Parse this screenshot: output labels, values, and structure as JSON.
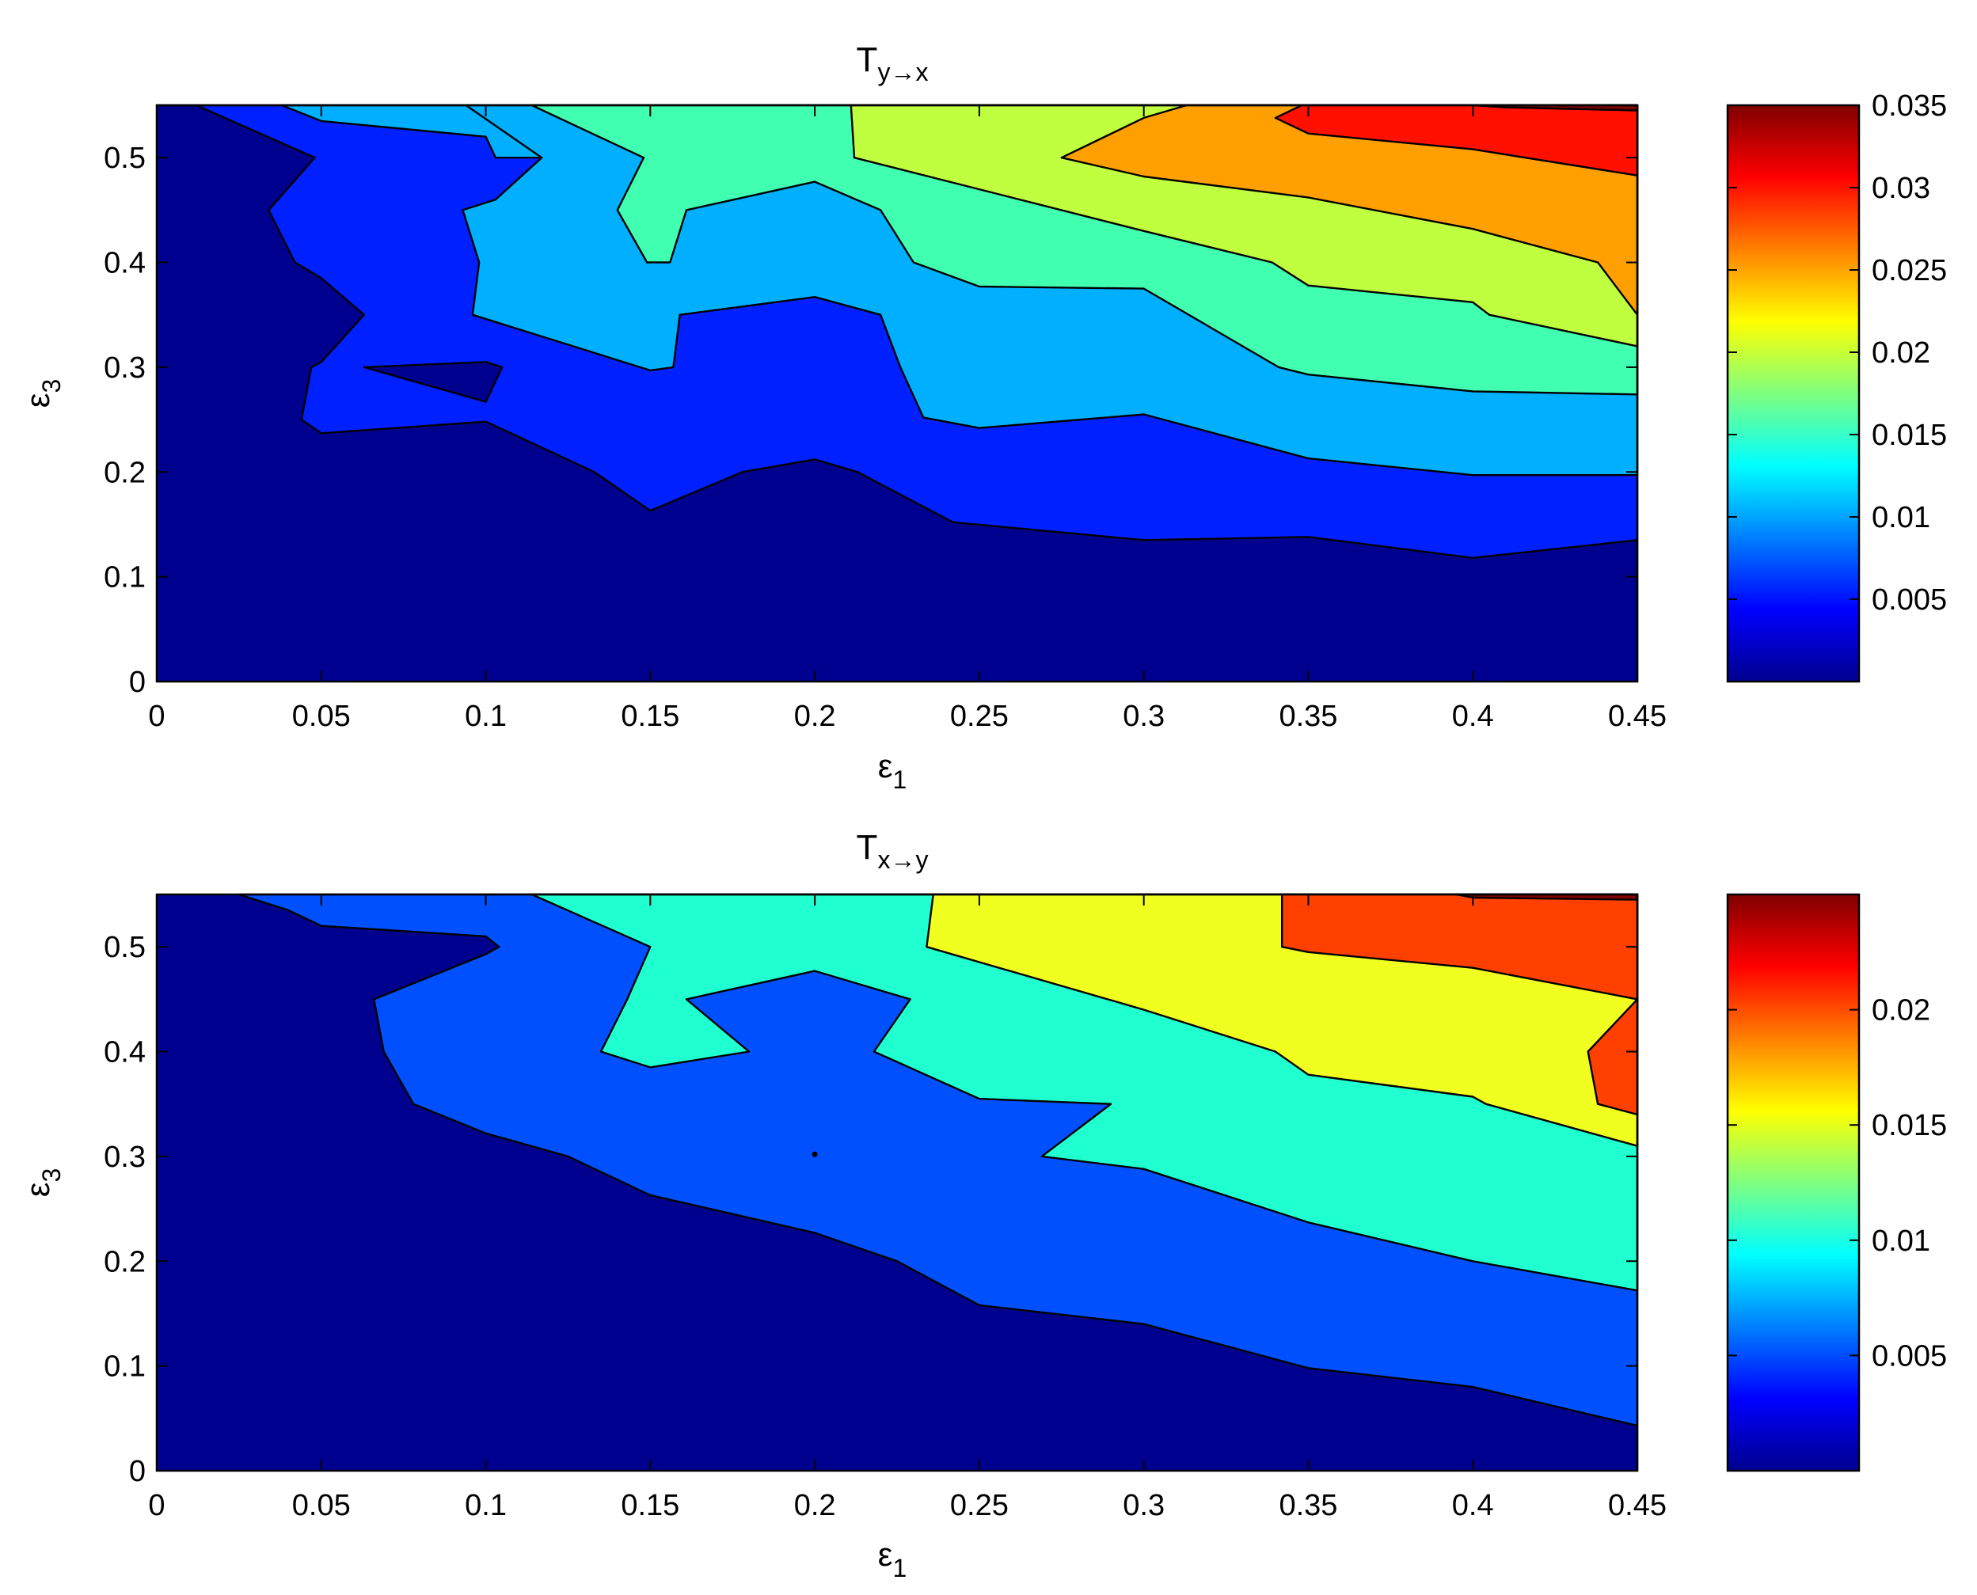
{
  "chart_data": [
    {
      "type": "contourf",
      "title": {
        "main": "T",
        "sub": "y→x"
      },
      "xlabel": {
        "main": "ε",
        "sub": "1"
      },
      "ylabel": {
        "main": "ε",
        "sub": "3"
      },
      "xlim": [
        0,
        0.45
      ],
      "ylim": [
        0,
        0.55
      ],
      "xticks": [
        "0",
        "0.05",
        "0.1",
        "0.15",
        "0.2",
        "0.25",
        "0.3",
        "0.35",
        "0.4",
        "0.45"
      ],
      "xtick_values": [
        0,
        0.05,
        0.1,
        0.15,
        0.2,
        0.25,
        0.3,
        0.35,
        0.4,
        0.45
      ],
      "yticks": [
        "0",
        "0.1",
        "0.2",
        "0.3",
        "0.4",
        "0.5"
      ],
      "ytick_values": [
        0,
        0.1,
        0.2,
        0.3,
        0.4,
        0.5
      ],
      "colorbar": {
        "range": [
          0,
          0.035
        ],
        "ticks": [
          "0.005",
          "0.01",
          "0.015",
          "0.02",
          "0.025",
          "0.03",
          "0.035"
        ],
        "tick_values": [
          0.005,
          0.01,
          0.015,
          0.02,
          0.025,
          0.03,
          0.035
        ]
      },
      "levels": [
        {
          "level": 0.005,
          "color": "#0020ff",
          "boundary": [
            [
              0,
              0.55
            ],
            [
              0.012,
              0.55
            ],
            [
              0.048,
              0.5
            ],
            [
              0.034,
              0.45
            ],
            [
              0.042,
              0.4
            ],
            [
              0.05,
              0.385
            ],
            [
              0.063,
              0.35
            ],
            [
              0.05,
              0.305
            ],
            [
              0.047,
              0.3
            ],
            [
              0.044,
              0.25
            ],
            [
              0.05,
              0.237
            ],
            [
              0.1,
              0.248
            ],
            [
              0.133,
              0.2
            ],
            [
              0.15,
              0.163
            ],
            [
              0.178,
              0.2
            ],
            [
              0.2,
              0.212
            ],
            [
              0.213,
              0.2
            ],
            [
              0.242,
              0.152
            ],
            [
              0.3,
              0.135
            ],
            [
              0.35,
              0.138
            ],
            [
              0.4,
              0.118
            ],
            [
              0.45,
              0.135
            ],
            [
              0.45,
              0
            ]
          ],
          "holes": [
            [
              [
                0.063,
                0.3
              ],
              [
                0.1,
                0.305
              ],
              [
                0.105,
                0.3
              ],
              [
                0.1,
                0.267
              ]
            ]
          ]
        },
        {
          "level": 0.01,
          "color": "#00b0ff",
          "boundary": [
            [
              0.038,
              0.55
            ],
            [
              0.05,
              0.535
            ],
            [
              0.1,
              0.52
            ],
            [
              0.103,
              0.5
            ],
            [
              0.117,
              0.5
            ],
            [
              0.094,
              0.55
            ]
          ],
          "lower": [
            [
              0.117,
              0.5
            ],
            [
              0.103,
              0.46
            ],
            [
              0.093,
              0.45
            ],
            [
              0.098,
              0.4
            ],
            [
              0.096,
              0.35
            ],
            [
              0.15,
              0.297
            ],
            [
              0.157,
              0.3
            ],
            [
              0.159,
              0.35
            ],
            [
              0.2,
              0.367
            ],
            [
              0.22,
              0.35
            ],
            [
              0.226,
              0.3
            ],
            [
              0.233,
              0.252
            ],
            [
              0.25,
              0.242
            ],
            [
              0.3,
              0.255
            ],
            [
              0.35,
              0.213
            ],
            [
              0.4,
              0.197
            ],
            [
              0.45,
              0.197
            ]
          ]
        },
        {
          "level": 0.015,
          "color": "#40ffb0",
          "lower": [
            [
              0.114,
              0.55
            ],
            [
              0.148,
              0.5
            ],
            [
              0.14,
              0.45
            ],
            [
              0.149,
              0.4
            ],
            [
              0.156,
              0.4
            ],
            [
              0.161,
              0.45
            ],
            [
              0.2,
              0.477
            ],
            [
              0.22,
              0.45
            ],
            [
              0.23,
              0.4
            ],
            [
              0.25,
              0.377
            ],
            [
              0.3,
              0.375
            ],
            [
              0.341,
              0.3
            ],
            [
              0.35,
              0.293
            ],
            [
              0.4,
              0.277
            ],
            [
              0.45,
              0.274
            ]
          ]
        },
        {
          "level": 0.02,
          "color": "#c0ff40",
          "lower": [
            [
              0.211,
              0.55
            ],
            [
              0.212,
              0.5
            ],
            [
              0.3,
              0.43
            ],
            [
              0.339,
              0.4
            ],
            [
              0.35,
              0.378
            ],
            [
              0.4,
              0.362
            ],
            [
              0.405,
              0.35
            ],
            [
              0.45,
              0.32
            ]
          ]
        },
        {
          "level": 0.025,
          "color": "#ffa000",
          "lower": [
            [
              0.313,
              0.55
            ],
            [
              0.3,
              0.538
            ],
            [
              0.275,
              0.5
            ],
            [
              0.3,
              0.482
            ],
            [
              0.35,
              0.462
            ],
            [
              0.4,
              0.432
            ],
            [
              0.438,
              0.4
            ],
            [
              0.45,
              0.35
            ]
          ]
        },
        {
          "level": 0.03,
          "color": "#ff1000",
          "lower": [
            [
              0.348,
              0.55
            ],
            [
              0.34,
              0.538
            ],
            [
              0.35,
              0.523
            ],
            [
              0.4,
              0.508
            ],
            [
              0.45,
              0.483
            ]
          ]
        },
        {
          "level": 0.035,
          "color": "#800000",
          "lower": [
            [
              0.4,
              0.55
            ],
            [
              0.41,
              0.548
            ],
            [
              0.45,
              0.545
            ]
          ]
        }
      ]
    },
    {
      "type": "contourf",
      "title": {
        "main": "T",
        "sub": "x→y"
      },
      "xlabel": {
        "main": "ε",
        "sub": "1"
      },
      "ylabel": {
        "main": "ε",
        "sub": "3"
      },
      "xlim": [
        0,
        0.45
      ],
      "ylim": [
        0,
        0.55
      ],
      "xticks": [
        "0",
        "0.05",
        "0.1",
        "0.15",
        "0.2",
        "0.25",
        "0.3",
        "0.35",
        "0.4",
        "0.45"
      ],
      "xtick_values": [
        0,
        0.05,
        0.1,
        0.15,
        0.2,
        0.25,
        0.3,
        0.35,
        0.4,
        0.45
      ],
      "yticks": [
        "0",
        "0.1",
        "0.2",
        "0.3",
        "0.4",
        "0.5"
      ],
      "ytick_values": [
        0,
        0.1,
        0.2,
        0.3,
        0.4,
        0.5
      ],
      "colorbar": {
        "range": [
          0,
          0.025
        ],
        "ticks": [
          "0.005",
          "0.01",
          "0.015",
          "0.02"
        ],
        "tick_values": [
          0.005,
          0.01,
          0.015,
          0.02
        ]
      },
      "levels": [
        {
          "level": 0.005,
          "color": "#0050ff",
          "boundary": [
            [
              0.025,
              0.55
            ],
            [
              0.04,
              0.535
            ],
            [
              0.05,
              0.52
            ],
            [
              0.1,
              0.51
            ],
            [
              0.104,
              0.5
            ],
            [
              0.1,
              0.493
            ],
            [
              0.066,
              0.45
            ],
            [
              0.069,
              0.4
            ],
            [
              0.078,
              0.35
            ],
            [
              0.1,
              0.322
            ],
            [
              0.125,
              0.3
            ],
            [
              0.15,
              0.263
            ],
            [
              0.2,
              0.227
            ],
            [
              0.225,
              0.2
            ],
            [
              0.25,
              0.158
            ],
            [
              0.3,
              0.14
            ],
            [
              0.35,
              0.098
            ],
            [
              0.4,
              0.08
            ],
            [
              0.45,
              0.043
            ],
            [
              0.45,
              0
            ]
          ],
          "point": [
            0.2,
            0.302
          ]
        },
        {
          "level": 0.01,
          "color": "#20ffd0",
          "lower": [
            [
              0.114,
              0.55
            ],
            [
              0.15,
              0.5
            ],
            [
              0.143,
              0.45
            ],
            [
              0.135,
              0.4
            ],
            [
              0.15,
              0.385
            ],
            [
              0.18,
              0.4
            ],
            [
              0.161,
              0.45
            ],
            [
              0.2,
              0.477
            ],
            [
              0.229,
              0.45
            ],
            [
              0.218,
              0.4
            ],
            [
              0.25,
              0.355
            ],
            [
              0.29,
              0.35
            ],
            [
              0.269,
              0.3
            ],
            [
              0.3,
              0.288
            ],
            [
              0.35,
              0.237
            ],
            [
              0.4,
              0.2
            ],
            [
              0.45,
              0.172
            ]
          ]
        },
        {
          "level": 0.015,
          "color": "#f0ff20",
          "lower": [
            [
              0.236,
              0.55
            ],
            [
              0.234,
              0.5
            ],
            [
              0.3,
              0.44
            ],
            [
              0.34,
              0.4
            ],
            [
              0.35,
              0.378
            ],
            [
              0.4,
              0.357
            ],
            [
              0.404,
              0.35
            ],
            [
              0.45,
              0.31
            ]
          ]
        },
        {
          "level": 0.02,
          "color": "#ff4000",
          "lower": [
            [
              0.342,
              0.55
            ],
            [
              0.342,
              0.5
            ],
            [
              0.35,
              0.495
            ],
            [
              0.4,
              0.48
            ],
            [
              0.45,
              0.45
            ],
            [
              0.435,
              0.4
            ],
            [
              0.438,
              0.35
            ],
            [
              0.45,
              0.34
            ]
          ]
        },
        {
          "level": 0.025,
          "color": "#800000",
          "lower": [
            [
              0.395,
              0.55
            ],
            [
              0.4,
              0.547
            ],
            [
              0.45,
              0.545
            ]
          ]
        }
      ]
    }
  ]
}
